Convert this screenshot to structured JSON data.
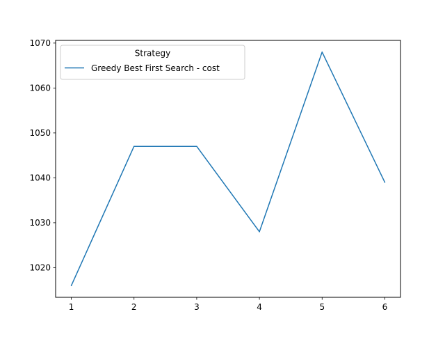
{
  "chart_data": {
    "type": "line",
    "title": "",
    "xlabel": "",
    "ylabel": "",
    "x": [
      1,
      2,
      3,
      4,
      5,
      6
    ],
    "x_ticks": [
      1,
      2,
      3,
      4,
      5,
      6
    ],
    "y_ticks": [
      1020,
      1030,
      1040,
      1050,
      1060,
      1070
    ],
    "xlim": [
      0.75,
      6.25
    ],
    "ylim": [
      1013.4,
      1070.6
    ],
    "grid": false,
    "legend": {
      "title": "Strategy",
      "placement": "upper-left"
    },
    "series": [
      {
        "name": "Greedy Best First Search - cost",
        "color": "#1f77b4",
        "values": [
          1016,
          1047,
          1047,
          1028,
          1068,
          1039
        ]
      }
    ]
  }
}
